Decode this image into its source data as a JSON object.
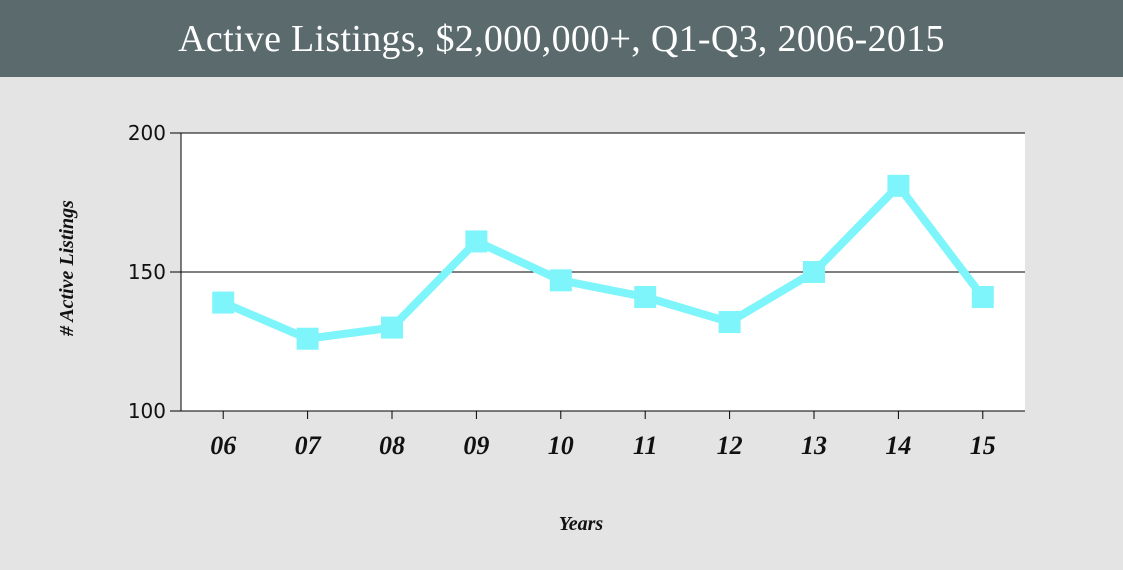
{
  "chart_data": {
    "type": "line",
    "title": "Active Listings, $2,000,000+, Q1-Q3, 2006-2015",
    "categories": [
      "06",
      "07",
      "08",
      "09",
      "10",
      "11",
      "12",
      "13",
      "14",
      "15"
    ],
    "series": [
      {
        "values": [
          139,
          126,
          130,
          161,
          147,
          141,
          132,
          150,
          181,
          141
        ]
      }
    ],
    "xlabel": "Years",
    "ylabel": "# Active Listings",
    "ylim": [
      100,
      200
    ],
    "yticks": [
      "100",
      "150",
      "200"
    ],
    "grid": "horizontal at 150",
    "colors": {
      "line": "#7ef4fb",
      "title_bar": "#5a6a6d",
      "background": "#e4e4e4",
      "plot_area": "#ffffff"
    }
  }
}
